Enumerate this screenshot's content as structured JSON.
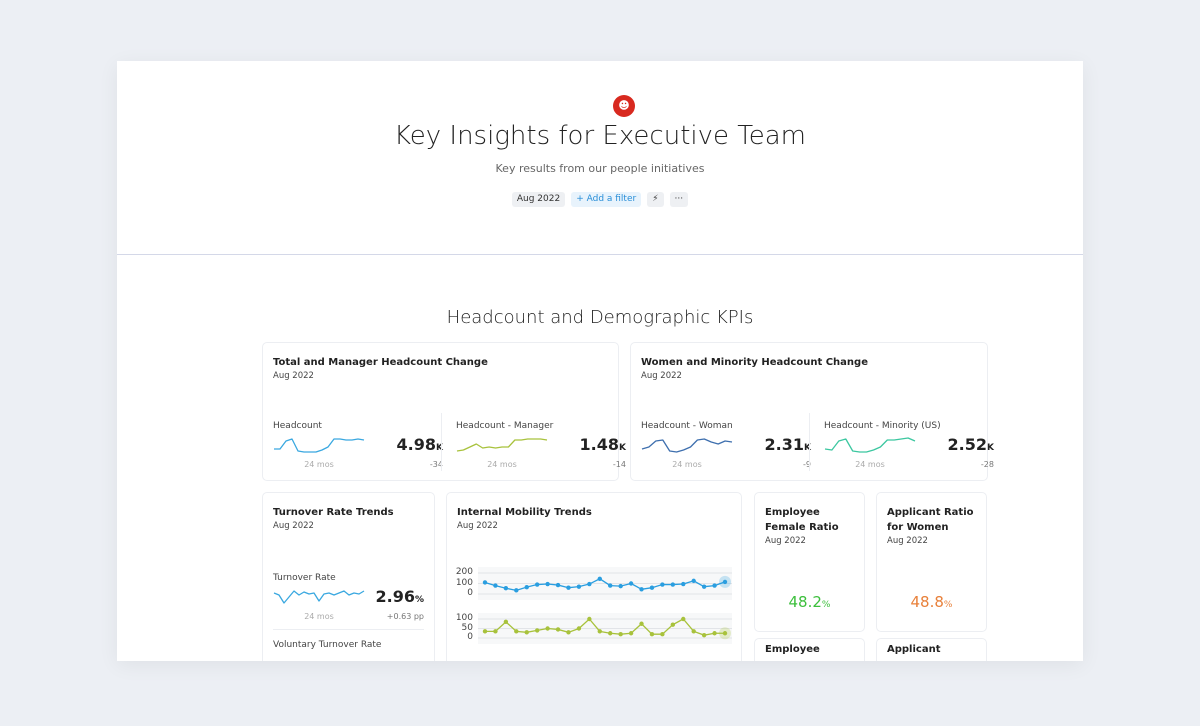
{
  "header": {
    "title": "Key Insights for Executive Team",
    "subtitle": "Key results from our people initiatives",
    "icon": "user-report-icon",
    "date_chip": "Aug 2022",
    "add_filter": "+ Add a filter",
    "lightning": "lightning-icon",
    "more": "···"
  },
  "section_title": "Headcount and Demographic KPIs",
  "cards": {
    "headcount": {
      "title": "Total and Manager Headcount Change",
      "date": "Aug 2022",
      "kpis": [
        {
          "label": "Headcount",
          "period": "24 mos",
          "value": "4.98",
          "unit": "K",
          "delta": "-34",
          "color": "#3aa8e0"
        },
        {
          "label": "Headcount - Manager",
          "period": "24 mos",
          "value": "1.48",
          "unit": "K",
          "delta": "-14",
          "color": "#a8c23c"
        }
      ]
    },
    "diversity": {
      "title": "Women and Minority Headcount Change",
      "date": "Aug 2022",
      "kpis": [
        {
          "label": "Headcount - Woman",
          "period": "24 mos",
          "value": "2.31",
          "unit": "K",
          "delta": "-9",
          "color": "#3e6fae"
        },
        {
          "label": "Headcount - Minority (US)",
          "period": "24 mos",
          "value": "2.52",
          "unit": "K",
          "delta": "-28",
          "color": "#3cc7a0"
        }
      ]
    },
    "turnover": {
      "title": "Turnover Rate Trends",
      "date": "Aug 2022",
      "kpis": [
        {
          "label": "Turnover Rate",
          "period": "24 mos",
          "value": "2.96",
          "unit": "%",
          "delta": "+0.63 pp",
          "color": "#3aa8e0"
        },
        {
          "label": "Voluntary Turnover Rate"
        }
      ]
    },
    "mobility": {
      "title": "Internal Mobility Trends",
      "date": "Aug 2022"
    },
    "female": {
      "title": "Employee Female Ratio",
      "date": "Aug 2022",
      "value": "48.2",
      "unit": "%",
      "color": "#3cbf3c"
    },
    "applicant": {
      "title": "Applicant Ratio for Women",
      "date": "Aug 2022",
      "value": "48.8",
      "unit": "%",
      "color": "#e8803a"
    },
    "row3": [
      {
        "title": "Employee"
      },
      {
        "title": "Applicant"
      }
    ]
  },
  "chart_data": {
    "type": "line",
    "series": [
      {
        "color": "#2a9ee0",
        "ylim": [
          0,
          200
        ],
        "ticks": [
          "200",
          "100",
          "0"
        ],
        "values": [
          110,
          80,
          55,
          35,
          65,
          90,
          95,
          85,
          60,
          70,
          95,
          145,
          80,
          75,
          100,
          45,
          60,
          90,
          90,
          95,
          125,
          70,
          80,
          115
        ]
      },
      {
        "color": "#a8c23c",
        "ylim": [
          0,
          100
        ],
        "ticks": [
          "100",
          "50",
          "0"
        ],
        "values": [
          35,
          35,
          85,
          35,
          30,
          40,
          50,
          45,
          30,
          50,
          100,
          35,
          25,
          20,
          25,
          75,
          20,
          20,
          70,
          100,
          35,
          15,
          25,
          25
        ]
      }
    ]
  }
}
